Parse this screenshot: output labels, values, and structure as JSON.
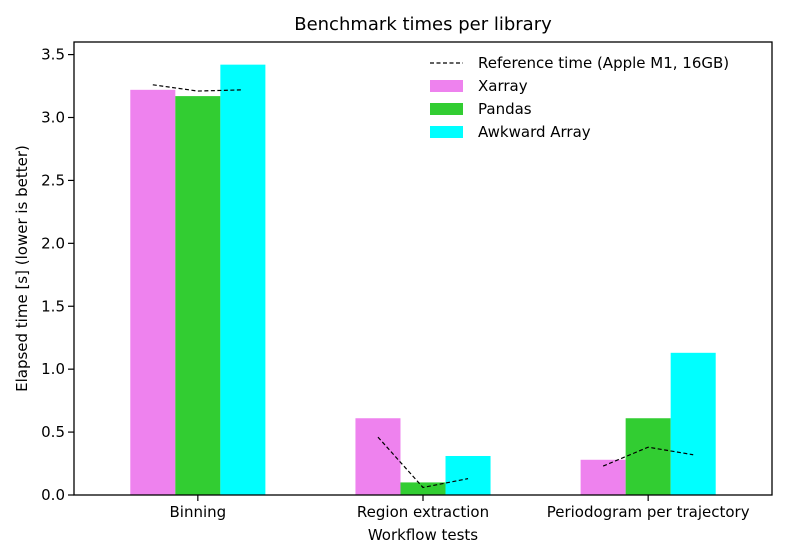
{
  "chart_data": {
    "type": "bar",
    "title": "Benchmark times per library",
    "xlabel": "Workflow tests",
    "ylabel": "Elapsed time [s] (lower is better)",
    "ylim": [
      0,
      3.6
    ],
    "yticks": [
      "0.0",
      "0.5",
      "1.0",
      "1.5",
      "2.0",
      "2.5",
      "3.0",
      "3.5"
    ],
    "categories": [
      "Binning",
      "Region extraction",
      "Periodogram per trajectory"
    ],
    "series": [
      {
        "name": "Xarray",
        "color": "#ee82ee",
        "values": [
          3.22,
          0.61,
          0.28
        ]
      },
      {
        "name": "Pandas",
        "color": "#32cd32",
        "values": [
          3.17,
          0.1,
          0.61
        ]
      },
      {
        "name": "Awkward Array",
        "color": "#00ffff",
        "values": [
          3.42,
          0.31,
          1.13
        ]
      }
    ],
    "reference": {
      "name": "Reference time (Apple M1, 16GB)",
      "color": "#000000",
      "values": [
        [
          3.26,
          3.21,
          3.22
        ],
        [
          0.46,
          0.06,
          0.13
        ],
        [
          0.23,
          0.38,
          0.32
        ]
      ]
    },
    "grid": false,
    "legend": "top-right"
  }
}
